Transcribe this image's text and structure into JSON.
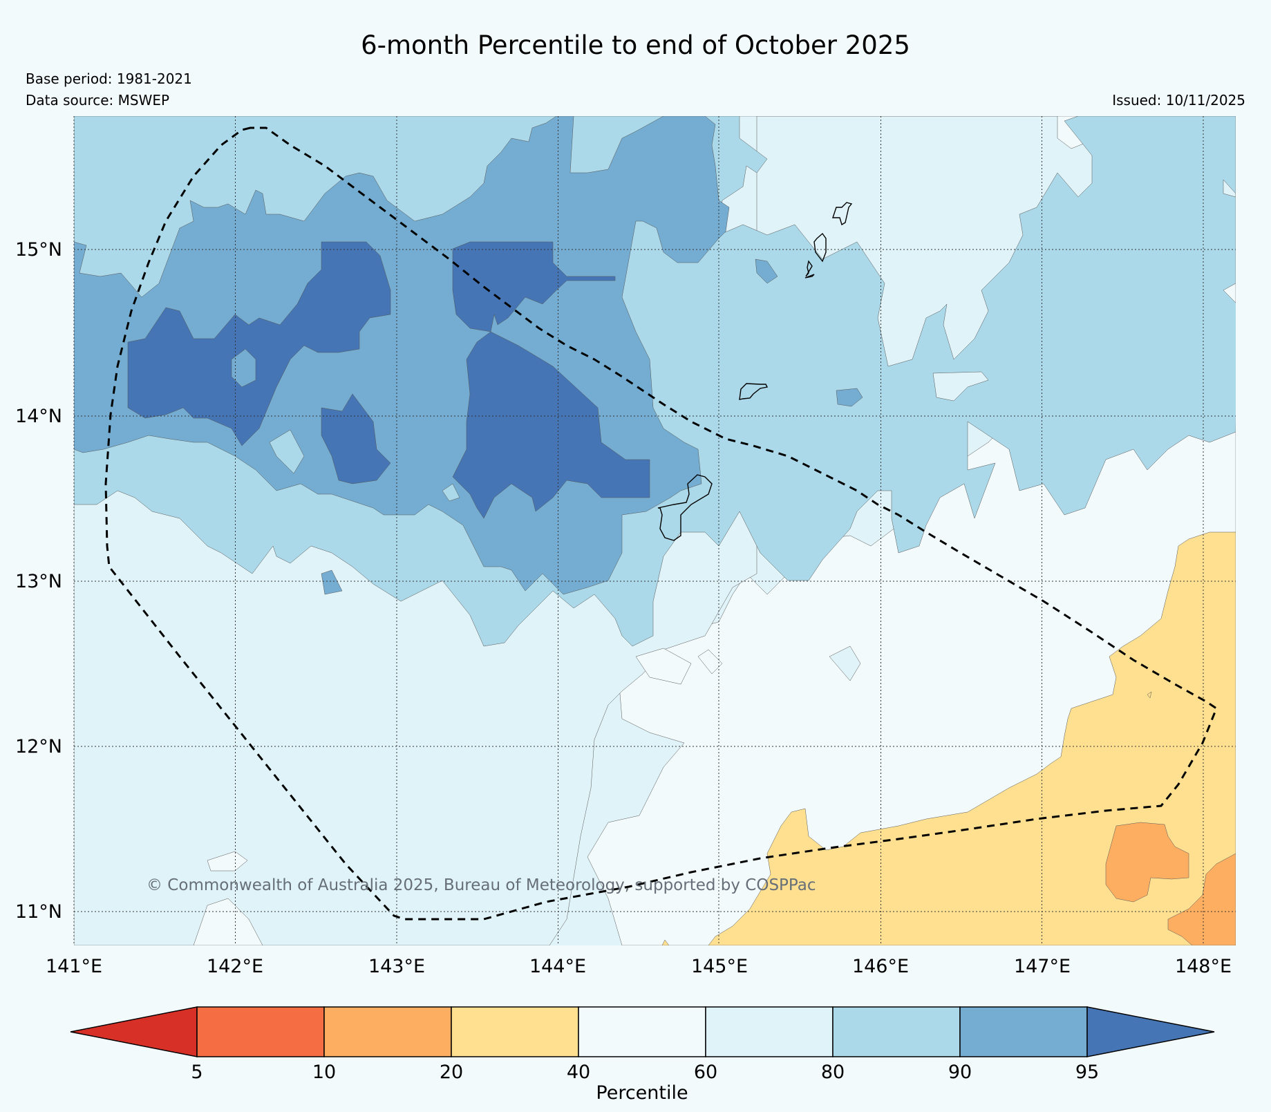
{
  "header": {
    "title": "6-month Percentile to end of October 2025",
    "base_period": "Base period: 1981-2021",
    "data_source": "Data source: MSWEP",
    "issued": "Issued: 10/11/2025"
  },
  "map": {
    "lon_labels": [
      "141°E",
      "142°E",
      "143°E",
      "144°E",
      "145°E",
      "146°E",
      "147°E",
      "148°E"
    ],
    "lat_labels": [
      "15°N",
      "14°N",
      "13°N",
      "12°N",
      "11°N"
    ],
    "copyright": "© Commonwealth of Australia 2025, Bureau of Meteorology, supported by COSPPac"
  },
  "colorbar": {
    "title": "Percentile",
    "ticks": [
      "5",
      "10",
      "20",
      "40",
      "60",
      "80",
      "90",
      "95"
    ],
    "colors": {
      "below_5": "#d73027",
      "p5_10": "#f46d43",
      "p10_20": "#fdae61",
      "p20_40": "#fee090",
      "p40_60": "#f3fafc",
      "p60_80": "#e0f3f8",
      "p80_90": "#abd9e9",
      "p90_95": "#74add1",
      "above_95": "#4575b4"
    }
  }
}
